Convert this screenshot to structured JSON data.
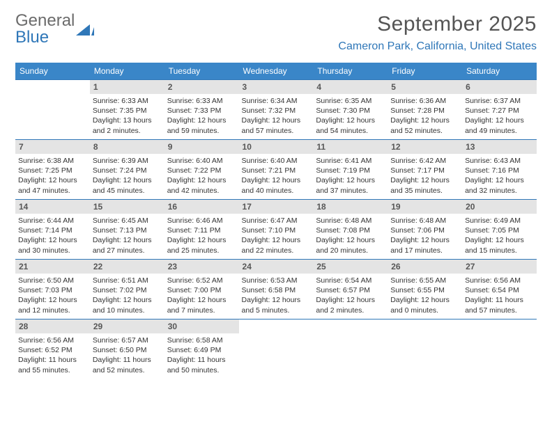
{
  "logo": {
    "textA": "General",
    "textB": "Blue",
    "shape_color": "#2f77b8"
  },
  "title": "September 2025",
  "location": "Cameron Park, California, United States",
  "colors": {
    "header_bg": "#3a86c8",
    "accent": "#2f77b8",
    "daynum_bg": "#e4e4e4"
  },
  "weekdays": [
    "Sunday",
    "Monday",
    "Tuesday",
    "Wednesday",
    "Thursday",
    "Friday",
    "Saturday"
  ],
  "first_weekday_index": 1,
  "days": [
    {
      "n": 1,
      "sunrise": "6:33 AM",
      "sunset": "7:35 PM",
      "daylight": "13 hours and 2 minutes."
    },
    {
      "n": 2,
      "sunrise": "6:33 AM",
      "sunset": "7:33 PM",
      "daylight": "12 hours and 59 minutes."
    },
    {
      "n": 3,
      "sunrise": "6:34 AM",
      "sunset": "7:32 PM",
      "daylight": "12 hours and 57 minutes."
    },
    {
      "n": 4,
      "sunrise": "6:35 AM",
      "sunset": "7:30 PM",
      "daylight": "12 hours and 54 minutes."
    },
    {
      "n": 5,
      "sunrise": "6:36 AM",
      "sunset": "7:28 PM",
      "daylight": "12 hours and 52 minutes."
    },
    {
      "n": 6,
      "sunrise": "6:37 AM",
      "sunset": "7:27 PM",
      "daylight": "12 hours and 49 minutes."
    },
    {
      "n": 7,
      "sunrise": "6:38 AM",
      "sunset": "7:25 PM",
      "daylight": "12 hours and 47 minutes."
    },
    {
      "n": 8,
      "sunrise": "6:39 AM",
      "sunset": "7:24 PM",
      "daylight": "12 hours and 45 minutes."
    },
    {
      "n": 9,
      "sunrise": "6:40 AM",
      "sunset": "7:22 PM",
      "daylight": "12 hours and 42 minutes."
    },
    {
      "n": 10,
      "sunrise": "6:40 AM",
      "sunset": "7:21 PM",
      "daylight": "12 hours and 40 minutes."
    },
    {
      "n": 11,
      "sunrise": "6:41 AM",
      "sunset": "7:19 PM",
      "daylight": "12 hours and 37 minutes."
    },
    {
      "n": 12,
      "sunrise": "6:42 AM",
      "sunset": "7:17 PM",
      "daylight": "12 hours and 35 minutes."
    },
    {
      "n": 13,
      "sunrise": "6:43 AM",
      "sunset": "7:16 PM",
      "daylight": "12 hours and 32 minutes."
    },
    {
      "n": 14,
      "sunrise": "6:44 AM",
      "sunset": "7:14 PM",
      "daylight": "12 hours and 30 minutes."
    },
    {
      "n": 15,
      "sunrise": "6:45 AM",
      "sunset": "7:13 PM",
      "daylight": "12 hours and 27 minutes."
    },
    {
      "n": 16,
      "sunrise": "6:46 AM",
      "sunset": "7:11 PM",
      "daylight": "12 hours and 25 minutes."
    },
    {
      "n": 17,
      "sunrise": "6:47 AM",
      "sunset": "7:10 PM",
      "daylight": "12 hours and 22 minutes."
    },
    {
      "n": 18,
      "sunrise": "6:48 AM",
      "sunset": "7:08 PM",
      "daylight": "12 hours and 20 minutes."
    },
    {
      "n": 19,
      "sunrise": "6:48 AM",
      "sunset": "7:06 PM",
      "daylight": "12 hours and 17 minutes."
    },
    {
      "n": 20,
      "sunrise": "6:49 AM",
      "sunset": "7:05 PM",
      "daylight": "12 hours and 15 minutes."
    },
    {
      "n": 21,
      "sunrise": "6:50 AM",
      "sunset": "7:03 PM",
      "daylight": "12 hours and 12 minutes."
    },
    {
      "n": 22,
      "sunrise": "6:51 AM",
      "sunset": "7:02 PM",
      "daylight": "12 hours and 10 minutes."
    },
    {
      "n": 23,
      "sunrise": "6:52 AM",
      "sunset": "7:00 PM",
      "daylight": "12 hours and 7 minutes."
    },
    {
      "n": 24,
      "sunrise": "6:53 AM",
      "sunset": "6:58 PM",
      "daylight": "12 hours and 5 minutes."
    },
    {
      "n": 25,
      "sunrise": "6:54 AM",
      "sunset": "6:57 PM",
      "daylight": "12 hours and 2 minutes."
    },
    {
      "n": 26,
      "sunrise": "6:55 AM",
      "sunset": "6:55 PM",
      "daylight": "12 hours and 0 minutes."
    },
    {
      "n": 27,
      "sunrise": "6:56 AM",
      "sunset": "6:54 PM",
      "daylight": "11 hours and 57 minutes."
    },
    {
      "n": 28,
      "sunrise": "6:56 AM",
      "sunset": "6:52 PM",
      "daylight": "11 hours and 55 minutes."
    },
    {
      "n": 29,
      "sunrise": "6:57 AM",
      "sunset": "6:50 PM",
      "daylight": "11 hours and 52 minutes."
    },
    {
      "n": 30,
      "sunrise": "6:58 AM",
      "sunset": "6:49 PM",
      "daylight": "11 hours and 50 minutes."
    }
  ],
  "labels": {
    "sunrise": "Sunrise:",
    "sunset": "Sunset:",
    "daylight": "Daylight:"
  },
  "font": {
    "body_size_pt": 10.5,
    "header_size_pt": 12,
    "title_size_pt": 30
  }
}
